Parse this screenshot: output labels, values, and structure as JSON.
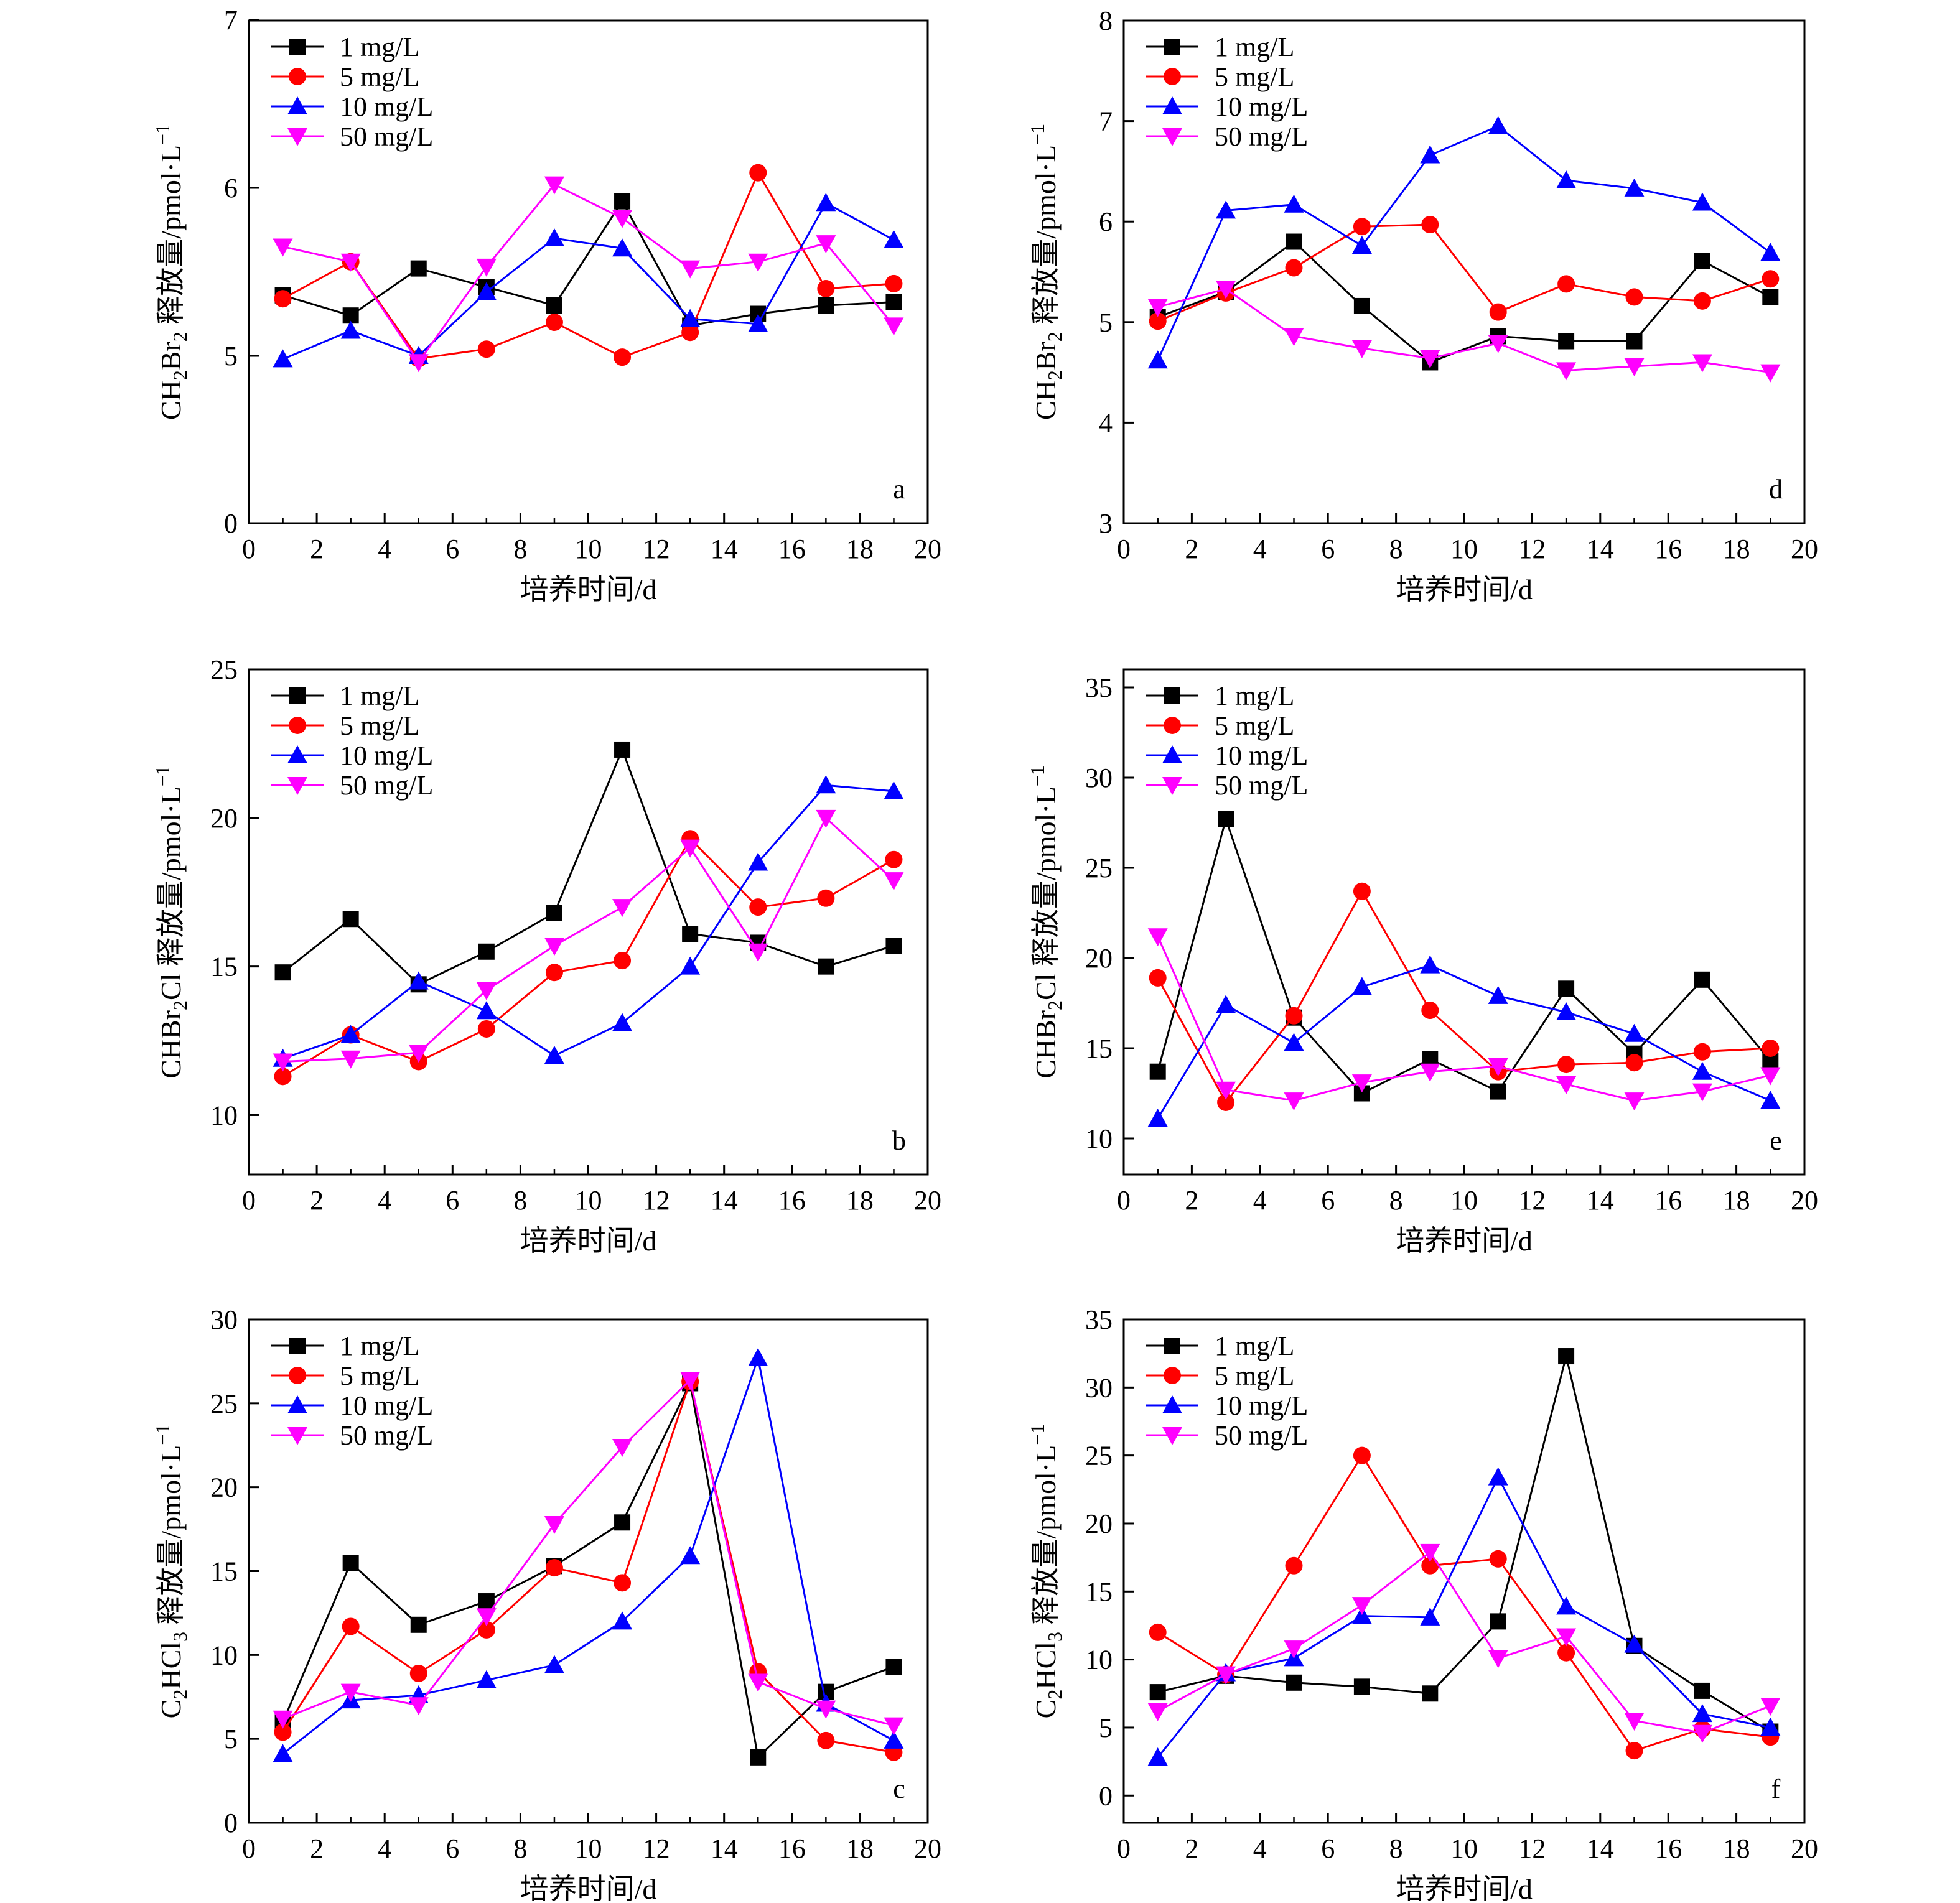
{
  "figure": {
    "legend_entries": [
      "1 mg/L",
      "5 mg/L",
      "10 mg/L",
      "50 mg/L"
    ],
    "series_colors": [
      "#000000",
      "#ff0000",
      "#0000ff",
      "#ff00ff"
    ],
    "series_markers": [
      "square",
      "circle",
      "triangle-up",
      "triangle-down"
    ]
  },
  "chart_data": [
    {
      "type": "line",
      "panel_label": "a",
      "ylabel_main": "CH",
      "ylabel_sub1": "2",
      "ylabel_mid": "Br",
      "ylabel_sub2": "2",
      "ylabel_tail": " 释放量/pmol·L",
      "ylabel_sup": "−1",
      "xlabel": "培养时间/d",
      "xlim": [
        0,
        20
      ],
      "ylim": [
        0,
        7
      ],
      "xticks": [
        "0",
        "2",
        "4",
        "6",
        "8",
        "10",
        "12",
        "14",
        "16",
        "18",
        "20"
      ],
      "yticks": [
        "0",
        "5",
        "6",
        "7"
      ],
      "ytick_values": [
        0,
        5,
        6,
        7
      ],
      "y_scale_note": "axis break: 0 at bottom, then 5 to 7",
      "legend_position": "top-left",
      "x": [
        1,
        3,
        5,
        7,
        9,
        11,
        13,
        15,
        17,
        19
      ],
      "series": [
        {
          "name": "1 mg/L",
          "values": [
            5.36,
            5.24,
            5.52,
            5.41,
            5.3,
            5.92,
            5.18,
            5.25,
            5.3,
            5.32
          ]
        },
        {
          "name": "5 mg/L",
          "values": [
            5.34,
            5.56,
            4.92,
            5.04,
            5.2,
            4.96,
            5.14,
            6.09,
            5.4,
            5.43
          ]
        },
        {
          "name": "10 mg/L",
          "values": [
            4.9,
            5.15,
            5.0,
            5.38,
            5.7,
            5.64,
            5.22,
            5.19,
            5.91,
            5.69
          ]
        },
        {
          "name": "50 mg/L",
          "values": [
            5.65,
            5.56,
            4.81,
            5.53,
            6.02,
            5.82,
            5.52,
            5.56,
            5.67,
            5.18
          ]
        }
      ]
    },
    {
      "type": "line",
      "panel_label": "d",
      "ylabel_main": "CH",
      "ylabel_sub1": "2",
      "ylabel_mid": "Br",
      "ylabel_sub2": "2",
      "ylabel_tail": " 释放量/pmol·L",
      "ylabel_sup": "−1",
      "xlabel": "培养时间/d",
      "xlim": [
        0,
        20
      ],
      "ylim": [
        3,
        8
      ],
      "xticks": [
        "0",
        "2",
        "4",
        "6",
        "8",
        "10",
        "12",
        "14",
        "16",
        "18",
        "20"
      ],
      "yticks": [
        "3",
        "4",
        "5",
        "6",
        "7",
        "8"
      ],
      "ytick_values": [
        3,
        4,
        5,
        6,
        7,
        8
      ],
      "legend_position": "top-left",
      "x": [
        1,
        3,
        5,
        7,
        9,
        11,
        13,
        15,
        17,
        19
      ],
      "series": [
        {
          "name": "1 mg/L",
          "values": [
            5.05,
            5.3,
            5.8,
            5.16,
            4.6,
            4.86,
            4.81,
            4.81,
            5.61,
            5.25
          ]
        },
        {
          "name": "5 mg/L",
          "values": [
            5.01,
            5.29,
            5.54,
            5.95,
            5.97,
            5.1,
            5.38,
            5.25,
            5.21,
            5.43
          ]
        },
        {
          "name": "10 mg/L",
          "values": [
            4.62,
            6.11,
            6.17,
            5.76,
            6.66,
            6.95,
            6.41,
            6.33,
            6.19,
            5.69
          ]
        },
        {
          "name": "50 mg/L",
          "values": [
            5.15,
            5.33,
            4.86,
            4.74,
            4.64,
            4.79,
            4.52,
            4.56,
            4.6,
            4.5
          ]
        }
      ]
    },
    {
      "type": "line",
      "panel_label": "b",
      "ylabel_main": "CHBr",
      "ylabel_sub1": "2",
      "ylabel_mid": "Cl",
      "ylabel_sub2": "",
      "ylabel_tail": " 释放量/pmol·L",
      "ylabel_sup": "−1",
      "xlabel": "培养时间/d",
      "xlim": [
        0,
        20
      ],
      "ylim": [
        8,
        25
      ],
      "xticks": [
        "0",
        "2",
        "4",
        "6",
        "8",
        "10",
        "12",
        "14",
        "16",
        "18",
        "20"
      ],
      "yticks": [
        "10",
        "15",
        "20",
        "25"
      ],
      "ytick_values": [
        10,
        15,
        20,
        25
      ],
      "legend_position": "top-left",
      "x": [
        1,
        3,
        5,
        7,
        9,
        11,
        13,
        15,
        17,
        19
      ],
      "series": [
        {
          "name": "1 mg/L",
          "values": [
            14.8,
            16.6,
            14.4,
            15.5,
            16.8,
            22.3,
            16.1,
            15.8,
            15.0,
            15.7
          ]
        },
        {
          "name": "5 mg/L",
          "values": [
            11.3,
            12.7,
            11.8,
            12.9,
            14.8,
            15.2,
            19.3,
            17.0,
            17.3,
            18.6
          ]
        },
        {
          "name": "10 mg/L",
          "values": [
            11.9,
            12.7,
            14.5,
            13.5,
            12.0,
            13.1,
            15.0,
            18.5,
            21.1,
            20.9
          ]
        },
        {
          "name": "50 mg/L",
          "values": [
            11.8,
            11.9,
            12.1,
            14.2,
            15.7,
            17.0,
            19.0,
            15.5,
            20.0,
            17.9
          ]
        }
      ]
    },
    {
      "type": "line",
      "panel_label": "e",
      "ylabel_main": "CHBr",
      "ylabel_sub1": "2",
      "ylabel_mid": "Cl",
      "ylabel_sub2": "",
      "ylabel_tail": " 释放量/pmol·L",
      "ylabel_sup": "−1",
      "xlabel": "培养时间/d",
      "xlim": [
        0,
        20
      ],
      "ylim": [
        8,
        36
      ],
      "xticks": [
        "0",
        "2",
        "4",
        "6",
        "8",
        "10",
        "12",
        "14",
        "16",
        "18",
        "20"
      ],
      "yticks": [
        "10",
        "15",
        "20",
        "25",
        "30",
        "35"
      ],
      "ytick_values": [
        10,
        15,
        20,
        25,
        30,
        35
      ],
      "legend_position": "top-left",
      "x": [
        1,
        3,
        5,
        7,
        9,
        11,
        13,
        15,
        17,
        19
      ],
      "series": [
        {
          "name": "1 mg/L",
          "values": [
            13.7,
            27.7,
            16.7,
            12.5,
            14.4,
            12.6,
            18.3,
            14.7,
            18.8,
            14.3
          ]
        },
        {
          "name": "5 mg/L",
          "values": [
            18.9,
            12.0,
            16.8,
            23.7,
            17.1,
            13.7,
            14.1,
            14.2,
            14.8,
            15.0
          ]
        },
        {
          "name": "10 mg/L",
          "values": [
            11.1,
            17.4,
            15.3,
            18.4,
            19.6,
            17.9,
            17.0,
            15.8,
            13.7,
            12.1
          ]
        },
        {
          "name": "50 mg/L",
          "values": [
            21.2,
            12.7,
            12.1,
            13.1,
            13.7,
            14.0,
            13.0,
            12.1,
            12.6,
            13.5
          ]
        }
      ]
    },
    {
      "type": "line",
      "panel_label": "c",
      "ylabel_main": "C",
      "ylabel_sub1": "2",
      "ylabel_mid": "HCl",
      "ylabel_sub2": "3",
      "ylabel_tail": " 释放量/pmol·L",
      "ylabel_sup": "−1",
      "xlabel": "培养时间/d",
      "xlim": [
        0,
        20
      ],
      "ylim": [
        0,
        30
      ],
      "xticks": [
        "0",
        "2",
        "4",
        "6",
        "8",
        "10",
        "12",
        "14",
        "16",
        "18",
        "20"
      ],
      "yticks": [
        "0",
        "5",
        "10",
        "15",
        "20",
        "25",
        "30"
      ],
      "ytick_values": [
        0,
        5,
        10,
        15,
        20,
        25,
        30
      ],
      "legend_position": "top-left",
      "x": [
        1,
        3,
        5,
        7,
        9,
        11,
        13,
        15,
        17,
        19
      ],
      "series": [
        {
          "name": "1 mg/L",
          "values": [
            6.0,
            15.5,
            11.8,
            13.2,
            15.3,
            17.9,
            26.2,
            3.9,
            7.8,
            9.3
          ]
        },
        {
          "name": "5 mg/L",
          "values": [
            5.4,
            11.7,
            8.9,
            11.5,
            15.2,
            14.3,
            26.3,
            9.0,
            4.9,
            4.2
          ]
        },
        {
          "name": "10 mg/L",
          "values": [
            4.1,
            7.3,
            7.6,
            8.5,
            9.4,
            12.0,
            15.9,
            27.7,
            7.1,
            4.9
          ]
        },
        {
          "name": "50 mg/L",
          "values": [
            6.2,
            7.8,
            7.0,
            12.3,
            17.8,
            22.4,
            26.4,
            8.4,
            6.8,
            5.8
          ]
        }
      ]
    },
    {
      "type": "line",
      "panel_label": "f",
      "ylabel_main": "C",
      "ylabel_sub1": "2",
      "ylabel_mid": "HCl",
      "ylabel_sub2": "3",
      "ylabel_tail": " 释放量/pmol·L",
      "ylabel_sup": "−1",
      "xlabel": "培养时间/d",
      "xlim": [
        0,
        20
      ],
      "ylim": [
        -2,
        35
      ],
      "xticks": [
        "0",
        "2",
        "4",
        "6",
        "8",
        "10",
        "12",
        "14",
        "16",
        "18",
        "20"
      ],
      "yticks": [
        "0",
        "5",
        "10",
        "15",
        "20",
        "25",
        "30",
        "35"
      ],
      "ytick_values": [
        0,
        5,
        10,
        15,
        20,
        25,
        30,
        35
      ],
      "legend_position": "top-left",
      "x": [
        1,
        3,
        5,
        7,
        9,
        11,
        13,
        15,
        17,
        19
      ],
      "series": [
        {
          "name": "1 mg/L",
          "values": [
            7.6,
            8.8,
            8.3,
            8.0,
            7.5,
            12.8,
            32.3,
            11.0,
            7.7,
            4.7
          ]
        },
        {
          "name": "5 mg/L",
          "values": [
            12.0,
            8.9,
            16.9,
            25.0,
            16.9,
            17.4,
            10.5,
            3.3,
            4.9,
            4.3
          ]
        },
        {
          "name": "10 mg/L",
          "values": [
            2.8,
            9.0,
            10.1,
            13.2,
            13.1,
            23.4,
            13.9,
            11.1,
            6.0,
            5.0
          ]
        },
        {
          "name": "50 mg/L",
          "values": [
            6.2,
            8.9,
            10.8,
            14.0,
            17.9,
            10.1,
            11.7,
            5.5,
            4.6,
            6.6
          ]
        }
      ]
    }
  ]
}
